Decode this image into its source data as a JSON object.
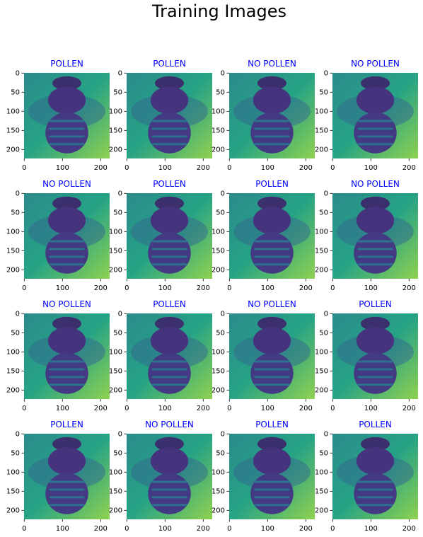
{
  "title": "Training Images",
  "chart_data": [
    {
      "type": "image",
      "title": "POLLEN",
      "title_color": "#0000ff",
      "xlim": [
        -0.5,
        223.5
      ],
      "ylim": [
        223.5,
        -0.5
      ],
      "xticks": [
        0,
        100,
        200
      ],
      "yticks": [
        0,
        50,
        100,
        150,
        200
      ]
    },
    {
      "type": "image",
      "title": "POLLEN",
      "title_color": "#0000ff",
      "xlim": [
        -0.5,
        223.5
      ],
      "ylim": [
        223.5,
        -0.5
      ],
      "xticks": [
        0,
        100,
        200
      ],
      "yticks": [
        0,
        50,
        100,
        150,
        200
      ]
    },
    {
      "type": "image",
      "title": "NO POLLEN",
      "title_color": "#0000ff",
      "xlim": [
        -0.5,
        223.5
      ],
      "ylim": [
        223.5,
        -0.5
      ],
      "xticks": [
        0,
        100,
        200
      ],
      "yticks": [
        0,
        50,
        100,
        150,
        200
      ]
    },
    {
      "type": "image",
      "title": "NO POLLEN",
      "title_color": "#0000ff",
      "xlim": [
        -0.5,
        223.5
      ],
      "ylim": [
        223.5,
        -0.5
      ],
      "xticks": [
        0,
        100,
        200
      ],
      "yticks": [
        0,
        50,
        100,
        150,
        200
      ]
    },
    {
      "type": "image",
      "title": "NO POLLEN",
      "title_color": "#0000ff",
      "xlim": [
        -0.5,
        223.5
      ],
      "ylim": [
        223.5,
        -0.5
      ],
      "xticks": [
        0,
        100,
        200
      ],
      "yticks": [
        0,
        50,
        100,
        150,
        200
      ]
    },
    {
      "type": "image",
      "title": "POLLEN",
      "title_color": "#0000ff",
      "xlim": [
        -0.5,
        223.5
      ],
      "ylim": [
        223.5,
        -0.5
      ],
      "xticks": [
        0,
        100,
        200
      ],
      "yticks": [
        0,
        50,
        100,
        150,
        200
      ]
    },
    {
      "type": "image",
      "title": "POLLEN",
      "title_color": "#0000ff",
      "xlim": [
        -0.5,
        223.5
      ],
      "ylim": [
        223.5,
        -0.5
      ],
      "xticks": [
        0,
        100,
        200
      ],
      "yticks": [
        0,
        50,
        100,
        150,
        200
      ]
    },
    {
      "type": "image",
      "title": "NO POLLEN",
      "title_color": "#0000ff",
      "xlim": [
        -0.5,
        223.5
      ],
      "ylim": [
        223.5,
        -0.5
      ],
      "xticks": [
        0,
        100,
        200
      ],
      "yticks": [
        0,
        50,
        100,
        150,
        200
      ]
    },
    {
      "type": "image",
      "title": "NO POLLEN",
      "title_color": "#0000ff",
      "xlim": [
        -0.5,
        223.5
      ],
      "ylim": [
        223.5,
        -0.5
      ],
      "xticks": [
        0,
        100,
        200
      ],
      "yticks": [
        0,
        50,
        100,
        150,
        200
      ]
    },
    {
      "type": "image",
      "title": "POLLEN",
      "title_color": "#0000ff",
      "xlim": [
        -0.5,
        223.5
      ],
      "ylim": [
        223.5,
        -0.5
      ],
      "xticks": [
        0,
        100,
        200
      ],
      "yticks": [
        0,
        50,
        100,
        150,
        200
      ]
    },
    {
      "type": "image",
      "title": "NO POLLEN",
      "title_color": "#0000ff",
      "xlim": [
        -0.5,
        223.5
      ],
      "ylim": [
        223.5,
        -0.5
      ],
      "xticks": [
        0,
        100,
        200
      ],
      "yticks": [
        0,
        50,
        100,
        150,
        200
      ]
    },
    {
      "type": "image",
      "title": "POLLEN",
      "title_color": "#0000ff",
      "xlim": [
        -0.5,
        223.5
      ],
      "ylim": [
        223.5,
        -0.5
      ],
      "xticks": [
        0,
        100,
        200
      ],
      "yticks": [
        0,
        50,
        100,
        150,
        200
      ]
    },
    {
      "type": "image",
      "title": "POLLEN",
      "title_color": "#0000ff",
      "xlim": [
        -0.5,
        223.5
      ],
      "ylim": [
        223.5,
        -0.5
      ],
      "xticks": [
        0,
        100,
        200
      ],
      "yticks": [
        0,
        50,
        100,
        150,
        200
      ]
    },
    {
      "type": "image",
      "title": "NO POLLEN",
      "title_color": "#0000ff",
      "xlim": [
        -0.5,
        223.5
      ],
      "ylim": [
        223.5,
        -0.5
      ],
      "xticks": [
        0,
        100,
        200
      ],
      "yticks": [
        0,
        50,
        100,
        150,
        200
      ]
    },
    {
      "type": "image",
      "title": "POLLEN",
      "title_color": "#0000ff",
      "xlim": [
        -0.5,
        223.5
      ],
      "ylim": [
        223.5,
        -0.5
      ],
      "xticks": [
        0,
        100,
        200
      ],
      "yticks": [
        0,
        50,
        100,
        150,
        200
      ]
    },
    {
      "type": "image",
      "title": "POLLEN",
      "title_color": "#0000ff",
      "xlim": [
        -0.5,
        223.5
      ],
      "ylim": [
        223.5,
        -0.5
      ],
      "xticks": [
        0,
        100,
        200
      ],
      "yticks": [
        0,
        50,
        100,
        150,
        200
      ]
    }
  ]
}
